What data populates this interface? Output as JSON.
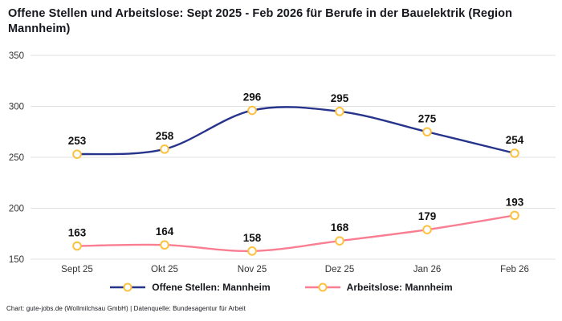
{
  "header": {
    "title": "Offene Stellen und Arbeitslose: Sept 2025 - Feb 2026 für Berufe in der Bauelektrik (Region Mannheim)"
  },
  "footer": {
    "credit": "Chart: gute-jobs.de (Wollmilchsau GmbH) | Datenquelle: Bundesagentur für Arbeit"
  },
  "chart_data": {
    "type": "line",
    "categories": [
      "Sept 25",
      "Okt 25",
      "Nov 25",
      "Dez 25",
      "Jan 26",
      "Feb 26"
    ],
    "series": [
      {
        "name": "Offene Stellen: Mannheim",
        "color": "#27348b",
        "values": [
          253,
          258,
          296,
          295,
          275,
          254
        ]
      },
      {
        "name": "Arbeitslose: Mannheim",
        "color": "#f97e92",
        "values": [
          163,
          164,
          158,
          168,
          179,
          193
        ]
      }
    ],
    "marker": {
      "fill": "#ffffff",
      "stroke": "#fcc13e"
    },
    "yticks": [
      150,
      200,
      250,
      300,
      350
    ],
    "ylim": [
      140,
      360
    ],
    "grid": true,
    "grid_color": "#e2e2e2",
    "label_color": "#111111",
    "tick_color": "#333333",
    "legend_position": "bottom",
    "title": "Offene Stellen und Arbeitslose: Sept 2025 - Feb 2026 für Berufe in der Bauelektrik (Region Mannheim)"
  }
}
